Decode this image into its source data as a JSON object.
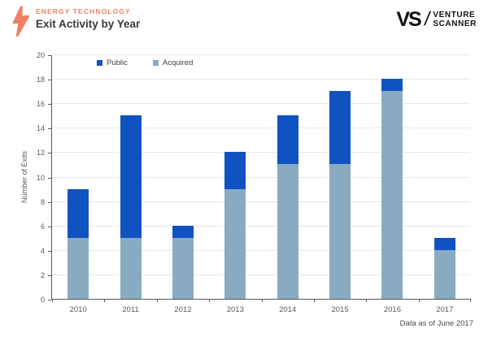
{
  "header": {
    "category_label": "ENERGY TECHNOLOGY",
    "title": "Exit Activity by Year"
  },
  "logo": {
    "vs": "VS",
    "slash": "/",
    "name_line1": "VENTURE",
    "name_line2": "SCANNER"
  },
  "footer": {
    "note": "Data as of June 2017"
  },
  "icons": {
    "bolt": "lightning-bolt-icon"
  },
  "colors": {
    "accent_orange": "#F08264",
    "public_blue": "#1152C1",
    "acquired_blue": "#88ABC2",
    "axis_gray": "#595959",
    "grid_gray": "#E7E7E7"
  },
  "chart_data": {
    "type": "bar",
    "stacked": true,
    "title": "Exit Activity by Year",
    "categories": [
      "2010",
      "2011",
      "2012",
      "2013",
      "2014",
      "2015",
      "2016",
      "2017"
    ],
    "series": [
      {
        "name": "Public",
        "color": "#1152C1",
        "values": [
          4,
          10,
          1,
          3,
          4,
          6,
          1,
          1
        ]
      },
      {
        "name": "Acquired",
        "color": "#88ABC2",
        "values": [
          5,
          5,
          5,
          9,
          11,
          11,
          17,
          4
        ]
      }
    ],
    "stack_bottom_to_top": [
      "Acquired",
      "Public"
    ],
    "totals": [
      9,
      15,
      6,
      12,
      15,
      17,
      18,
      5
    ],
    "xlabel": "",
    "ylabel": "Number of Exits",
    "ylim": [
      0,
      20
    ],
    "ytick_step": 2,
    "grid": "horizontal",
    "legend_position": "top-left-inside",
    "legend_order": [
      "Public",
      "Acquired"
    ]
  }
}
